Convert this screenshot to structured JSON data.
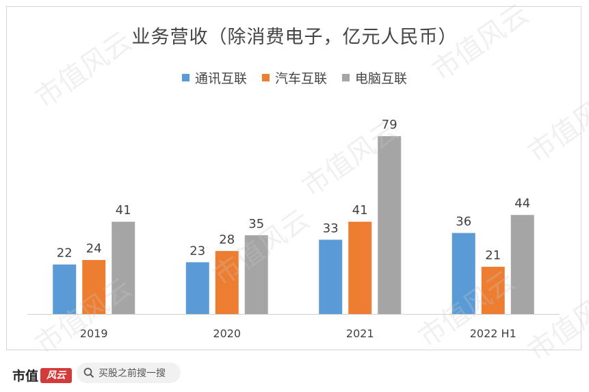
{
  "chart_data": {
    "type": "bar",
    "title": "业务营收（除消费电子，亿元人民币）",
    "categories": [
      "2019",
      "2020",
      "2021",
      "2022 H1"
    ],
    "series": [
      {
        "name": "通讯互联",
        "color": "#5b9bd5",
        "values": [
          22,
          23,
          33,
          36
        ]
      },
      {
        "name": "汽车互联",
        "color": "#ed7d31",
        "values": [
          24,
          28,
          41,
          21
        ]
      },
      {
        "name": "电脑互联",
        "color": "#a5a5a5",
        "values": [
          41,
          35,
          79,
          44
        ]
      }
    ],
    "ylim": [
      0,
      100
    ],
    "grid": false,
    "legend_position": "top"
  },
  "footer": {
    "brand_text": "市值",
    "brand_mark": "风云",
    "search_text": "买股之前搜一搜"
  },
  "watermark_text": "市值风云",
  "icons": {
    "search": "search-icon"
  }
}
